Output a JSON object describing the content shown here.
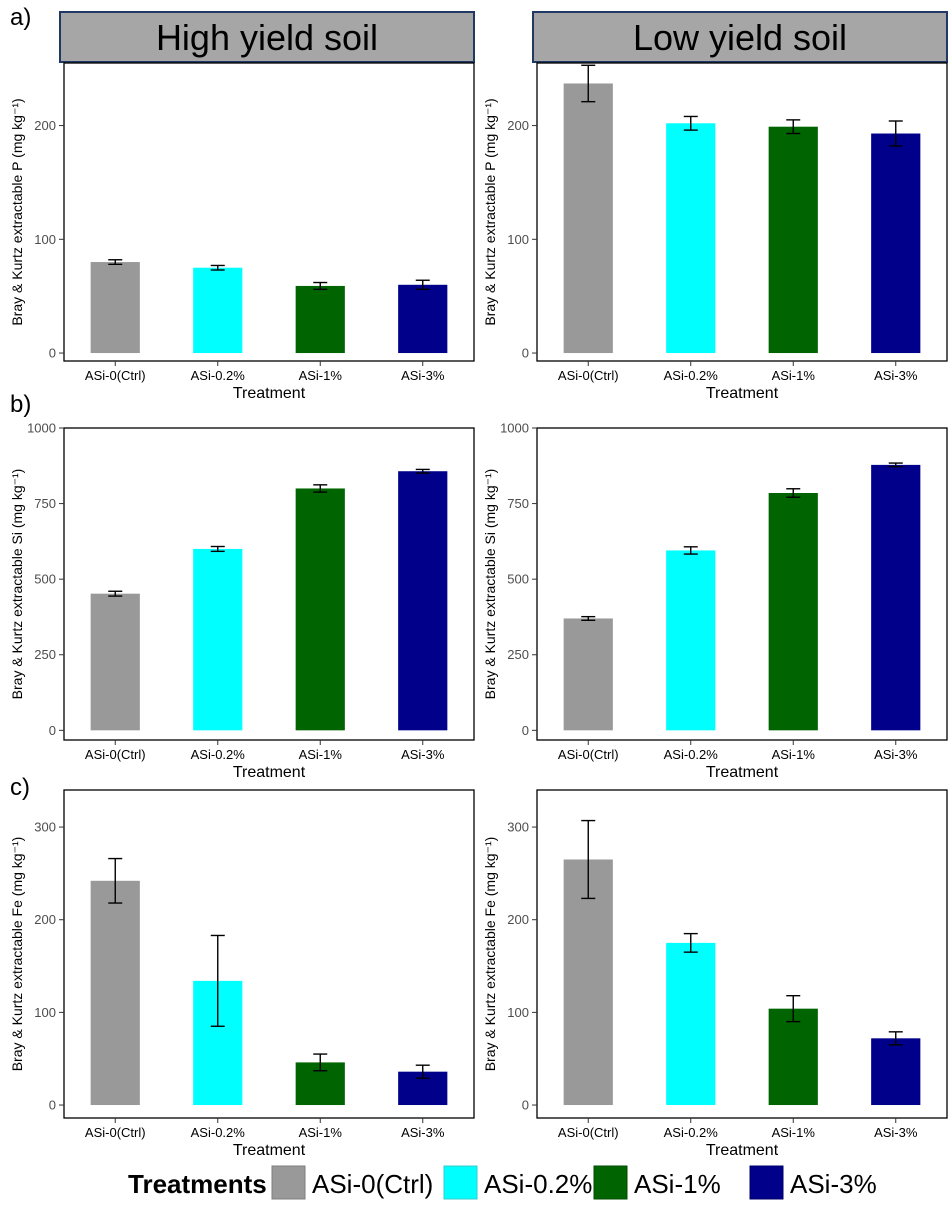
{
  "figure": {
    "panel_labels": [
      "a)",
      "b)",
      "c)"
    ],
    "strip_titles": [
      "High yield soil",
      "Low yield soil"
    ],
    "legend": {
      "title": "Treatments",
      "items": [
        "ASi-0(Ctrl)",
        "ASi-0.2%",
        "ASi-1%",
        "ASi-3%"
      ]
    },
    "colors": {
      "ASi-0(Ctrl)": "#999999",
      "ASi-0.2%": "#00FFFF",
      "ASi-1%": "#006400",
      "ASi-3%": "#00008B",
      "strip_fill": "#A6A6A6",
      "strip_border": "#1F3864"
    }
  },
  "chart_data": [
    {
      "type": "bar",
      "row": "a",
      "col": "high",
      "categories": [
        "ASi-0(Ctrl)",
        "ASi-0.2%",
        "ASi-1%",
        "ASi-3%"
      ],
      "values": [
        80,
        75,
        59,
        60
      ],
      "errors": [
        2,
        2,
        3,
        4
      ],
      "xlabel": "Treatment",
      "ylabel": "Bray & Kurtz extractable P (mg kg⁻¹)",
      "ylim": [
        -7,
        255
      ],
      "yticks": [
        0,
        100,
        200
      ]
    },
    {
      "type": "bar",
      "row": "a",
      "col": "low",
      "categories": [
        "ASi-0(Ctrl)",
        "ASi-0.2%",
        "ASi-1%",
        "ASi-3%"
      ],
      "values": [
        237,
        202,
        199,
        193
      ],
      "errors": [
        16,
        6,
        6,
        11
      ],
      "xlabel": "Treatment",
      "ylabel": "Bray & Kurtz extractable P (mg kg⁻¹)",
      "ylim": [
        -7,
        255
      ],
      "yticks": [
        0,
        100,
        200
      ]
    },
    {
      "type": "bar",
      "row": "b",
      "col": "high",
      "categories": [
        "ASi-0(Ctrl)",
        "ASi-0.2%",
        "ASi-1%",
        "ASi-3%"
      ],
      "values": [
        452,
        600,
        800,
        857
      ],
      "errors": [
        8,
        8,
        12,
        6
      ],
      "xlabel": "Treatment",
      "ylabel": "Bray & Kurtz extractable Si (mg kg⁻¹)",
      "ylim": [
        -32,
        1000
      ],
      "yticks": [
        0,
        250,
        500,
        750,
        1000
      ]
    },
    {
      "type": "bar",
      "row": "b",
      "col": "low",
      "categories": [
        "ASi-0(Ctrl)",
        "ASi-0.2%",
        "ASi-1%",
        "ASi-3%"
      ],
      "values": [
        370,
        595,
        785,
        878
      ],
      "errors": [
        6,
        12,
        14,
        6
      ],
      "xlabel": "Treatment",
      "ylabel": "Bray & Kurtz extractable Si (mg kg⁻¹)",
      "ylim": [
        -32,
        1000
      ],
      "yticks": [
        0,
        250,
        500,
        750,
        1000
      ]
    },
    {
      "type": "bar",
      "row": "c",
      "col": "high",
      "categories": [
        "ASi-0(Ctrl)",
        "ASi-0.2%",
        "ASi-1%",
        "ASi-3%"
      ],
      "values": [
        242,
        134,
        46,
        36
      ],
      "errors": [
        24,
        49,
        9,
        7
      ],
      "xlabel": "Treatment",
      "ylabel": "Bray & Kurtz extractable Fe (mg kg⁻¹)",
      "ylim": [
        -14,
        340
      ],
      "yticks": [
        0,
        100,
        200,
        300
      ]
    },
    {
      "type": "bar",
      "row": "c",
      "col": "low",
      "categories": [
        "ASi-0(Ctrl)",
        "ASi-0.2%",
        "ASi-1%",
        "ASi-3%"
      ],
      "values": [
        265,
        175,
        104,
        72
      ],
      "errors": [
        42,
        10,
        14,
        7
      ],
      "xlabel": "Treatment",
      "ylabel": "Bray & Kurtz extractable Fe (mg kg⁻¹)",
      "ylim": [
        -14,
        340
      ],
      "yticks": [
        0,
        100,
        200,
        300
      ]
    }
  ]
}
